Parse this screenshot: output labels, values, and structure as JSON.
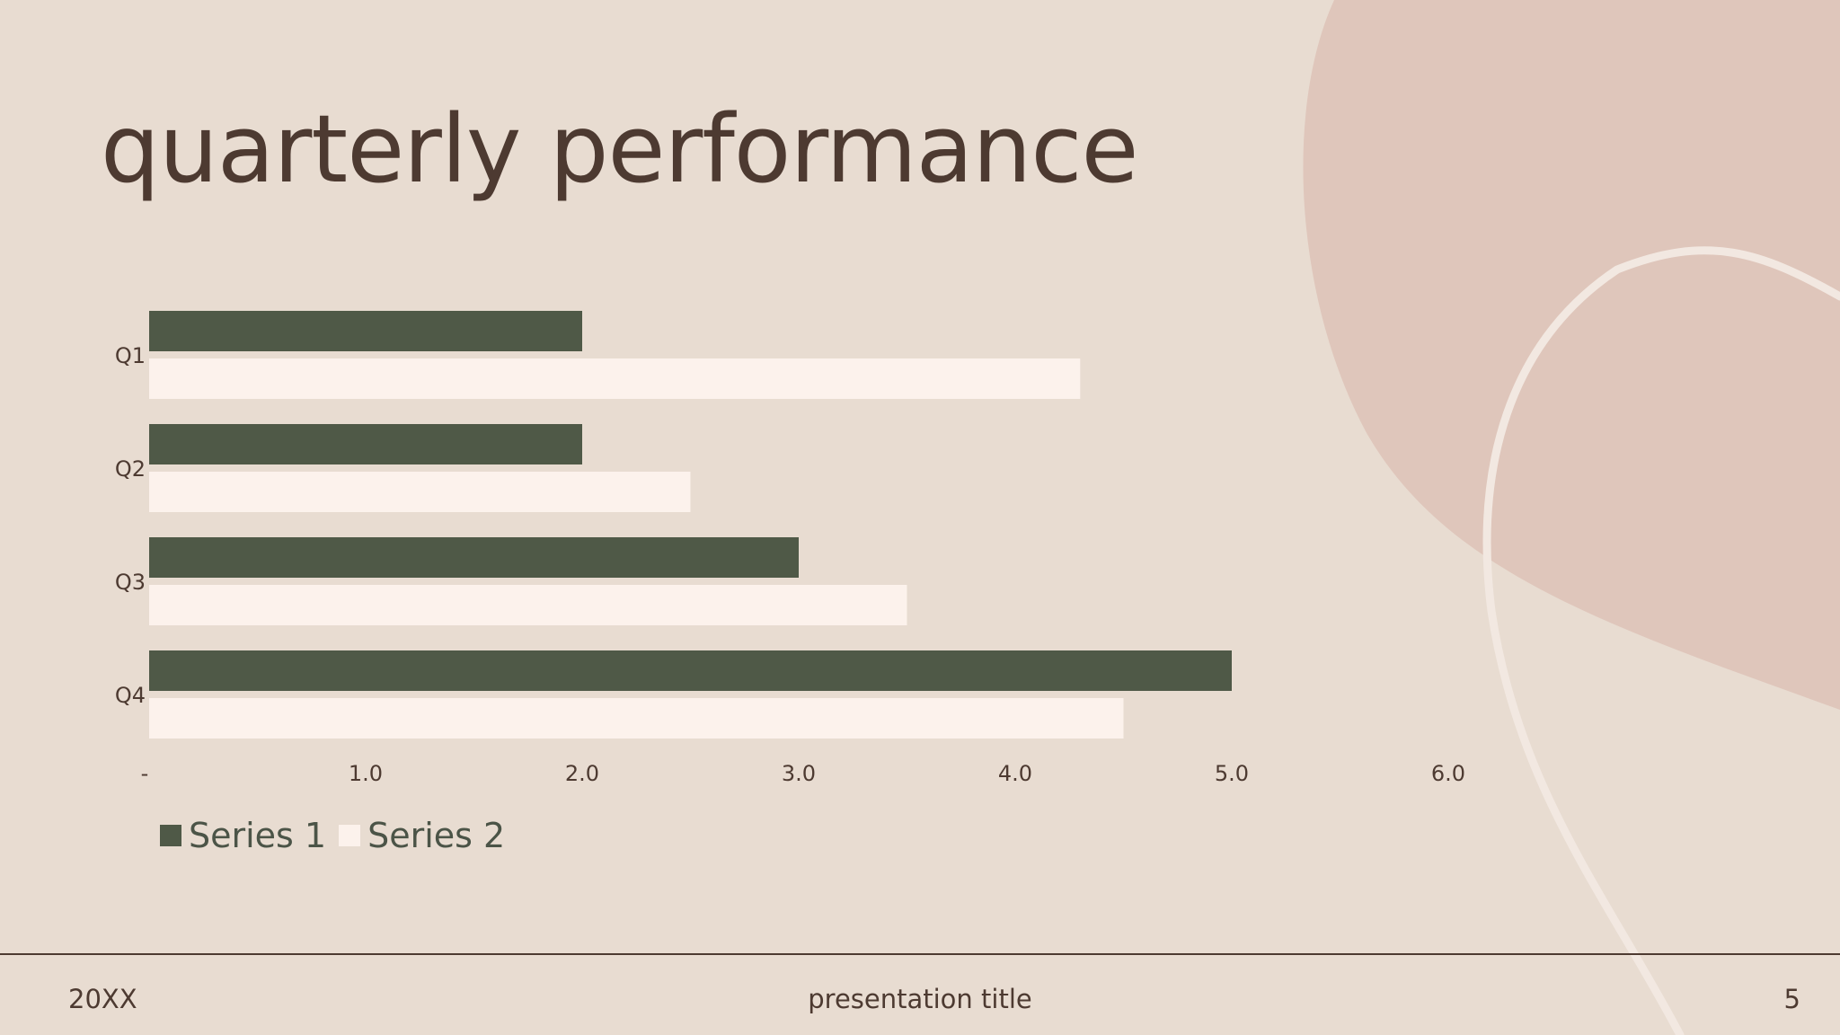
{
  "slide": {
    "title": "quarterly performance",
    "footer": {
      "date": "20XX",
      "presentation_title": "presentation title",
      "page_number": "5"
    }
  },
  "colors": {
    "background": "#e8dcd1",
    "blob": "#dfc6bb",
    "curve": "#f2e8e1",
    "title_text": "#4d3a31",
    "series_1": "#4f5947",
    "series_2": "#fcf2ec"
  },
  "chart_data": {
    "type": "bar",
    "orientation": "horizontal",
    "categories": [
      "Q1",
      "Q2",
      "Q3",
      "Q4"
    ],
    "series": [
      {
        "name": "Series 1",
        "values": [
          2.0,
          2.0,
          3.0,
          5.0
        ]
      },
      {
        "name": "Series 2",
        "values": [
          4.3,
          2.5,
          3.5,
          4.5
        ]
      }
    ],
    "x_ticks": [
      "-",
      "1.0",
      "2.0",
      "3.0",
      "4.0",
      "5.0",
      "6.0"
    ],
    "xlim": [
      0,
      6
    ],
    "grid": false,
    "legend_position": "bottom-left"
  }
}
